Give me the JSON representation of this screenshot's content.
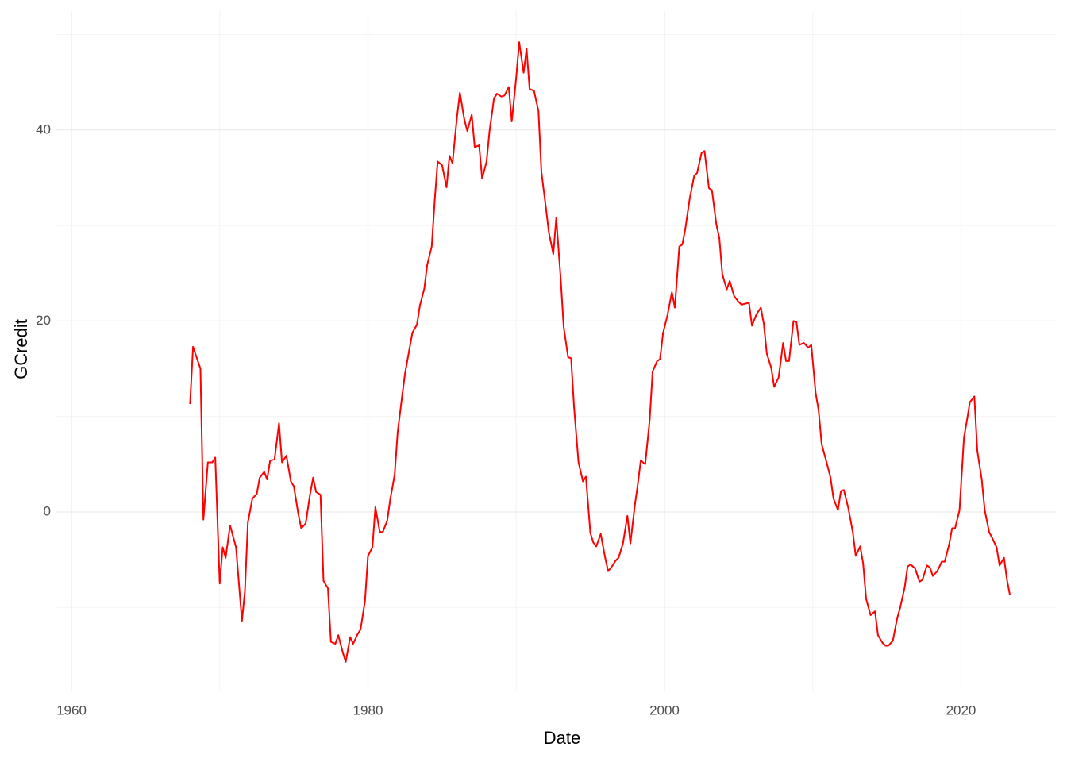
{
  "chart_data": {
    "type": "line",
    "x_label": "Date",
    "y_label": "GCredit",
    "xlim": [
      1960,
      2026.4
    ],
    "ylim": [
      -18.7,
      52.4
    ],
    "xticks": [
      1960,
      1980,
      2000,
      2020
    ],
    "yticks": [
      0,
      20,
      40
    ],
    "xminor_ticks": [
      1970,
      1990,
      2010
    ],
    "yminor_ticks": [
      -10,
      10,
      30,
      50
    ],
    "grid": true,
    "x": [
      1968.0,
      1968.2,
      1968.7,
      1968.9,
      1969.2,
      1969.5,
      1969.7,
      1970.0,
      1970.2,
      1970.4,
      1970.7,
      1971.1,
      1971.5,
      1971.7,
      1971.9,
      1972.2,
      1972.5,
      1972.7,
      1973.0,
      1973.2,
      1973.4,
      1973.7,
      1974.0,
      1974.2,
      1974.5,
      1974.8,
      1975.0,
      1975.3,
      1975.5,
      1975.8,
      1976.1,
      1976.3,
      1976.5,
      1976.8,
      1977.0,
      1977.3,
      1977.5,
      1977.8,
      1978.0,
      1978.3,
      1978.5,
      1978.8,
      1979.0,
      1979.3,
      1979.5,
      1979.8,
      1980.0,
      1980.3,
      1980.5,
      1980.8,
      1981.0,
      1981.3,
      1981.5,
      1981.8,
      1982.0,
      1982.3,
      1982.5,
      1982.8,
      1983.0,
      1983.3,
      1983.5,
      1983.8,
      1984.0,
      1984.3,
      1984.5,
      1984.7,
      1985.0,
      1985.3,
      1985.5,
      1985.7,
      1986.0,
      1986.2,
      1986.5,
      1986.7,
      1987.0,
      1987.2,
      1987.5,
      1987.7,
      1988.0,
      1988.2,
      1988.5,
      1988.7,
      1989.0,
      1989.2,
      1989.5,
      1989.7,
      1990.0,
      1990.2,
      1990.5,
      1990.7,
      1990.9,
      1991.2,
      1991.5,
      1991.7,
      1992.0,
      1992.2,
      1992.5,
      1992.7,
      1993.0,
      1993.2,
      1993.5,
      1993.7,
      1993.9,
      1994.2,
      1994.5,
      1994.7,
      1995.0,
      1995.2,
      1995.4,
      1995.7,
      1996.0,
      1996.2,
      1996.5,
      1996.7,
      1996.9,
      1997.2,
      1997.5,
      1997.7,
      1998.0,
      1998.2,
      1998.4,
      1998.7,
      1999.0,
      1999.2,
      1999.5,
      1999.7,
      1999.9,
      2000.2,
      2000.5,
      2000.7,
      2001.0,
      2001.2,
      2001.4,
      2001.7,
      2002.0,
      2002.2,
      2002.5,
      2002.7,
      2003.0,
      2003.2,
      2003.5,
      2003.7,
      2003.9,
      2004.2,
      2004.4,
      2004.7,
      2005.0,
      2005.2,
      2005.4,
      2005.7,
      2005.9,
      2006.2,
      2006.5,
      2006.7,
      2006.9,
      2007.2,
      2007.4,
      2007.7,
      2008.0,
      2008.2,
      2008.4,
      2008.7,
      2008.9,
      2009.1,
      2009.4,
      2009.7,
      2009.9,
      2010.2,
      2010.4,
      2010.6,
      2010.9,
      2011.2,
      2011.4,
      2011.7,
      2011.9,
      2012.1,
      2012.4,
      2012.7,
      2012.9,
      2013.2,
      2013.4,
      2013.6,
      2013.9,
      2014.2,
      2014.4,
      2014.7,
      2014.9,
      2015.1,
      2015.4,
      2015.7,
      2015.9,
      2016.2,
      2016.4,
      2016.6,
      2016.9,
      2017.2,
      2017.4,
      2017.7,
      2017.9,
      2018.1,
      2018.4,
      2018.7,
      2018.9,
      2019.2,
      2019.4,
      2019.6,
      2019.9,
      2020.2,
      2020.4,
      2020.6,
      2020.9,
      2021.1,
      2021.4,
      2021.6,
      2021.9,
      2022.1,
      2022.4,
      2022.6,
      2022.9,
      2023.1,
      2023.3
    ],
    "series": [
      {
        "name": "GCredit",
        "color": "#ff0000",
        "values": [
          11.3,
          17.3,
          15.0,
          -0.8,
          5.2,
          5.2,
          5.7,
          -7.5,
          -3.7,
          -4.8,
          -1.4,
          -3.7,
          -11.4,
          -8.3,
          -1.1,
          1.4,
          1.9,
          3.6,
          4.2,
          3.4,
          5.4,
          5.5,
          9.3,
          5.2,
          5.9,
          3.2,
          2.7,
          -0.2,
          -1.7,
          -1.2,
          1.9,
          3.6,
          2.1,
          1.8,
          -7.2,
          -8.0,
          -13.6,
          -13.8,
          -12.9,
          -14.7,
          -15.7,
          -13.1,
          -13.8,
          -12.8,
          -12.3,
          -9.3,
          -4.6,
          -3.7,
          0.5,
          -2.1,
          -2.1,
          -0.9,
          1.3,
          3.9,
          8.3,
          12.1,
          14.5,
          17.1,
          18.8,
          19.6,
          21.6,
          23.4,
          25.9,
          27.8,
          32.6,
          36.7,
          36.3,
          34.0,
          37.3,
          36.5,
          41.3,
          43.9,
          41.1,
          39.9,
          41.6,
          38.2,
          38.4,
          34.9,
          36.7,
          39.9,
          43.3,
          43.8,
          43.5,
          43.6,
          44.5,
          40.9,
          45.5,
          49.2,
          46.0,
          48.5,
          44.3,
          44.1,
          42.0,
          35.6,
          31.9,
          29.3,
          27.0,
          30.8,
          24.4,
          19.4,
          16.2,
          16.1,
          11.0,
          5.2,
          3.2,
          3.7,
          -2.2,
          -3.2,
          -3.6,
          -2.3,
          -4.8,
          -6.2,
          -5.6,
          -5.1,
          -4.8,
          -3.3,
          -0.4,
          -3.3,
          0.7,
          2.9,
          5.4,
          5.0,
          9.6,
          14.7,
          15.8,
          16.0,
          18.7,
          20.6,
          23.0,
          21.4,
          27.8,
          28.0,
          29.6,
          32.8,
          35.2,
          35.5,
          37.6,
          37.8,
          33.9,
          33.7,
          30.1,
          28.7,
          24.9,
          23.3,
          24.2,
          22.6,
          22.0,
          21.7,
          21.8,
          21.9,
          19.5,
          20.7,
          21.4,
          19.7,
          16.6,
          15.1,
          13.1,
          14.1,
          17.7,
          15.8,
          15.8,
          20.0,
          19.9,
          17.5,
          17.7,
          17.2,
          17.5,
          12.4,
          10.6,
          7.1,
          5.4,
          3.6,
          1.4,
          0.2,
          2.2,
          2.3,
          0.4,
          -2.1,
          -4.6,
          -3.6,
          -5.4,
          -9.1,
          -10.8,
          -10.4,
          -12.9,
          -13.7,
          -14.0,
          -14.0,
          -13.5,
          -11.1,
          -10.0,
          -7.9,
          -5.7,
          -5.5,
          -5.9,
          -7.3,
          -7.1,
          -5.6,
          -5.8,
          -6.7,
          -6.2,
          -5.2,
          -5.2,
          -3.4,
          -1.7,
          -1.7,
          0.2,
          7.8,
          9.6,
          11.5,
          12.1,
          6.4,
          3.4,
          0.2,
          -2.1,
          -2.7,
          -3.7,
          -5.6,
          -4.8,
          -7.1,
          -8.7
        ]
      }
    ]
  }
}
